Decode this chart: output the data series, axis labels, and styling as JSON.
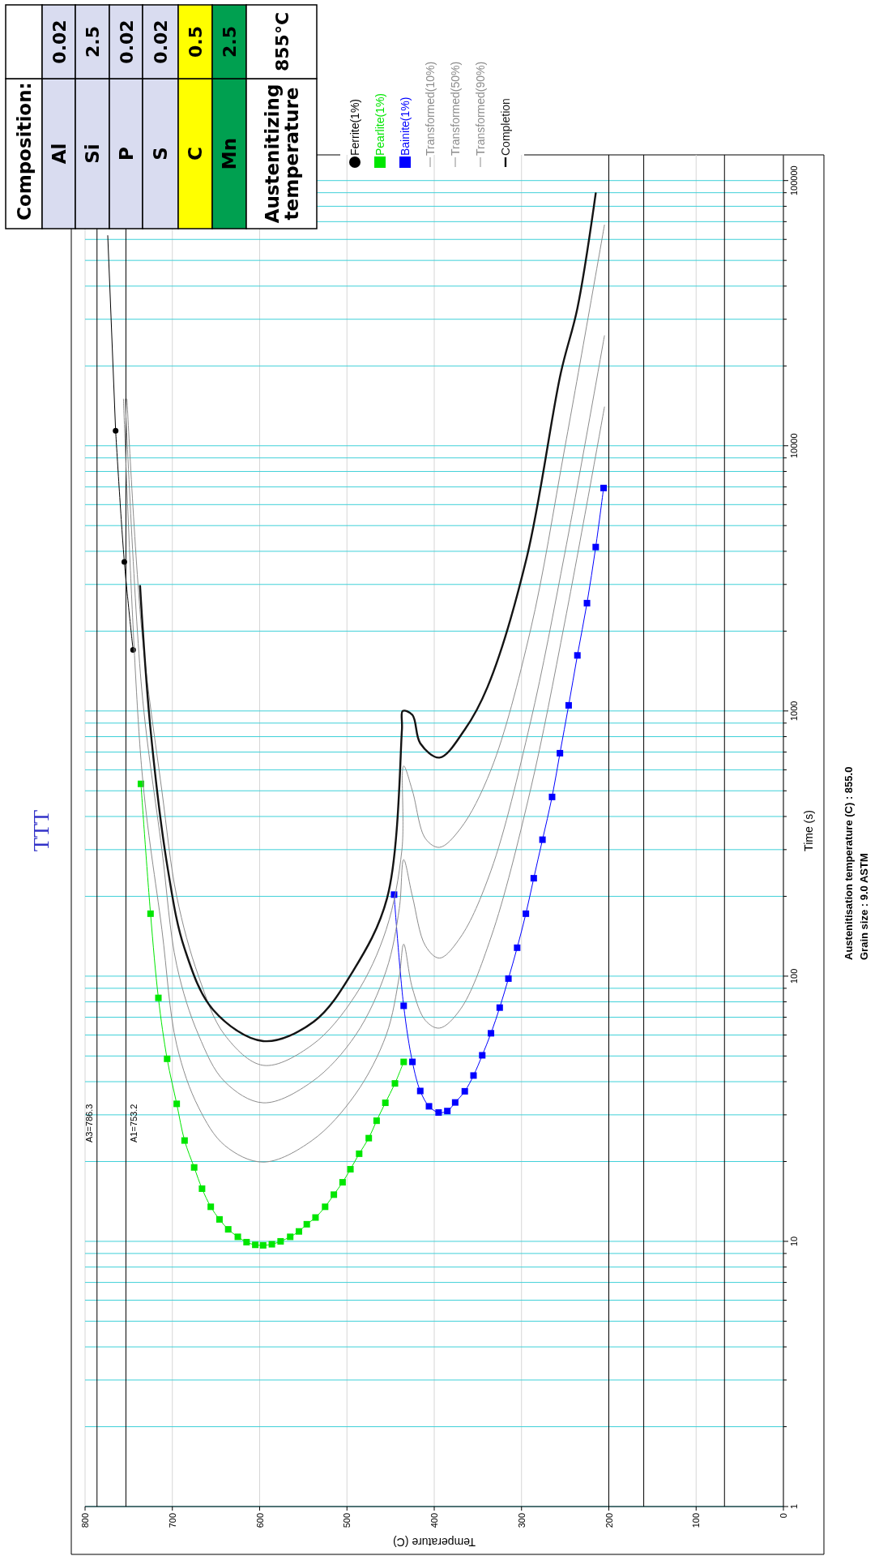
{
  "chart_data": {
    "type": "line",
    "title": "TTT",
    "xlabel": "Temperature (C)",
    "ylabel": "Time (s)",
    "log": "y",
    "xlim": [
      800,
      0
    ],
    "ylim": [
      1,
      125000
    ],
    "yticks": [
      1,
      {
        "value": 2,
        "label": null
      },
      {
        "value": 3,
        "label": null
      },
      {
        "value": 4,
        "label": null
      },
      {
        "value": 5,
        "label": null
      },
      {
        "value": 6,
        "label": null
      },
      {
        "value": 7,
        "label": null
      },
      {
        "value": 8,
        "label": null
      },
      {
        "value": 9,
        "label": null
      },
      10,
      {
        "value": 20,
        "label": null
      },
      {
        "value": 30,
        "label": null
      },
      {
        "value": 40,
        "label": null
      },
      {
        "value": 50,
        "label": null
      },
      {
        "value": 60,
        "label": null
      },
      {
        "value": 70,
        "label": null
      },
      {
        "value": 80,
        "label": null
      },
      {
        "value": 90,
        "label": null
      },
      100,
      {
        "value": 200,
        "label": null
      },
      {
        "value": 300,
        "label": null
      },
      {
        "value": 400,
        "label": null
      },
      {
        "value": 500,
        "label": null
      },
      {
        "value": 600,
        "label": null
      },
      {
        "value": 700,
        "label": null
      },
      {
        "value": 800,
        "label": null
      },
      {
        "value": 900,
        "label": null
      },
      1000,
      {
        "value": 2000,
        "label": null
      },
      {
        "value": 3000,
        "label": null
      },
      {
        "value": 4000,
        "label": null
      },
      {
        "value": 5000,
        "label": null
      },
      {
        "value": 6000,
        "label": null
      },
      {
        "value": 7000,
        "label": null
      },
      {
        "value": 8000,
        "label": null
      },
      {
        "value": 9000,
        "label": null
      },
      10000,
      {
        "value": 20000,
        "label": null
      },
      {
        "value": 30000,
        "label": null
      },
      {
        "value": 40000,
        "label": null
      },
      {
        "value": 50000,
        "label": null
      },
      {
        "value": 60000,
        "label": null
      },
      {
        "value": 70000,
        "label": null
      },
      {
        "value": 80000,
        "label": null
      },
      {
        "value": 90000,
        "label": null
      },
      100000
    ],
    "xticks": [
      800,
      700,
      600,
      500,
      400,
      300,
      200,
      100,
      0
    ],
    "grid": true,
    "legend": "top",
    "series": [
      {
        "name": "Ferrite(1%)",
        "color": "#000000",
        "marker": "circle",
        "x": [
          745,
          755,
          765
        ],
        "values": [
          1700,
          3650,
          11400
        ]
      },
      {
        "color": "#000000",
        "marker": "none",
        "x": [
          765,
          774
        ],
        "values": [
          11400,
          62000
        ]
      },
      {
        "name": "Pearlite(1%)",
        "color": "#00e600",
        "marker": "square",
        "x": [
          736,
          725,
          716,
          706,
          695,
          686,
          675,
          666,
          656,
          646,
          636,
          625,
          615,
          605,
          596,
          586,
          576,
          565,
          555,
          546,
          536,
          525,
          515,
          505,
          496,
          486,
          475,
          466,
          456,
          445,
          435
        ],
        "values": [
          531,
          172,
          82.8,
          48.8,
          33,
          24,
          19,
          15.8,
          13.5,
          12.1,
          11.1,
          10.4,
          9.93,
          9.7,
          9.66,
          9.75,
          10,
          10.4,
          10.9,
          11.6,
          12.3,
          13.5,
          15,
          16.7,
          18.7,
          21.4,
          24.5,
          28.5,
          33.3,
          39.4,
          47.5
        ]
      },
      {
        "name": "Bainite(1%)",
        "color": "#0000ff",
        "marker": "square",
        "x": [
          446,
          435,
          425,
          416,
          406,
          395,
          385,
          376,
          365,
          355,
          345,
          335,
          325,
          315,
          305,
          295,
          286,
          276,
          265,
          256,
          246,
          236,
          225,
          215,
          206
        ],
        "values": [
          203,
          77.3,
          47.5,
          36.9,
          32.3,
          30.6,
          31,
          33.4,
          36.8,
          42.2,
          50.3,
          60.9,
          76.1,
          97.9,
          128,
          172,
          234,
          327,
          474,
          693,
          1050,
          1620,
          2550,
          4150,
          6930
        ]
      },
      {
        "name": "Transformed(10%)",
        "color": "#8c8c8c",
        "marker": "none",
        "x": [
          756,
          735,
          712,
          695,
          670,
          640,
          596,
          540,
          490,
          455,
          440,
          435,
          425,
          410,
          394,
          370,
          335,
          290,
          250,
          205
        ],
        "values": [
          15000,
          600,
          150,
          55,
          32,
          23,
          19.9,
          24,
          36,
          60,
          100,
          132,
          90,
          68,
          63.7,
          75,
          140,
          500,
          2200,
          14000
        ]
      },
      {
        "name": "Transformed(50%)",
        "color": "#8c8c8c",
        "marker": "none",
        "x": [
          754,
          735,
          712,
          695,
          670,
          640,
          596,
          540,
          490,
          455,
          440,
          435,
          425,
          410,
          394,
          370,
          335,
          290,
          250,
          205
        ],
        "values": [
          15000,
          1200,
          300,
          110,
          60,
          40,
          33.3,
          40,
          60,
          105,
          180,
          275,
          200,
          130,
          117,
          140,
          250,
          900,
          4000,
          26000
        ]
      },
      {
        "name": "Transformed(90%)",
        "color": "#8c8c8c",
        "marker": "none",
        "x": [
          752,
          735,
          712,
          695,
          670,
          640,
          596,
          540,
          490,
          455,
          437,
          435,
          425,
          410,
          394,
          370,
          335,
          290,
          250,
          205
        ],
        "values": [
          15000,
          2000,
          500,
          200,
          100,
          60,
          46.1,
          55,
          85,
          150,
          300,
          620,
          500,
          330,
          306,
          360,
          600,
          2000,
          10000,
          68000
        ]
      },
      {
        "name": "Completion",
        "color": "#141414",
        "marker": "none",
        "x": [
          737,
          725,
          705,
          686,
          653,
          596,
          538,
          493,
          454,
          437,
          436,
          425,
          416,
          394,
          365,
          339,
          294,
          255,
          236,
          215
        ],
        "values": [
          2960,
          851,
          251,
          127,
          74.5,
          56.9,
          67.4,
          104.5,
          197,
          851,
          1000,
          966,
          755,
          667,
          851,
          1230,
          3790,
          18800,
          33000,
          89500
        ]
      }
    ],
    "ref_lines": [
      {
        "axis": "x",
        "value": 786.3,
        "label": "A3=786.3"
      },
      {
        "axis": "x",
        "value": 753.2,
        "label": "A1=753.2"
      },
      {
        "axis": "x",
        "value": 200
      },
      {
        "axis": "x",
        "value": 160
      },
      {
        "axis": "x",
        "value": 67.5
      }
    ],
    "annotations": [
      "Austenitisation temperature (C) : 855.0",
      "Grain size : 9.0 ASTM",
      "Composition:",
      "Al",
      "0.02",
      "Si",
      "2.5",
      "P",
      "0.02",
      "S",
      "0.02",
      "C",
      "0.5",
      "Mn",
      "2.5",
      "Austenitizing temperature",
      "855°C"
    ]
  }
}
